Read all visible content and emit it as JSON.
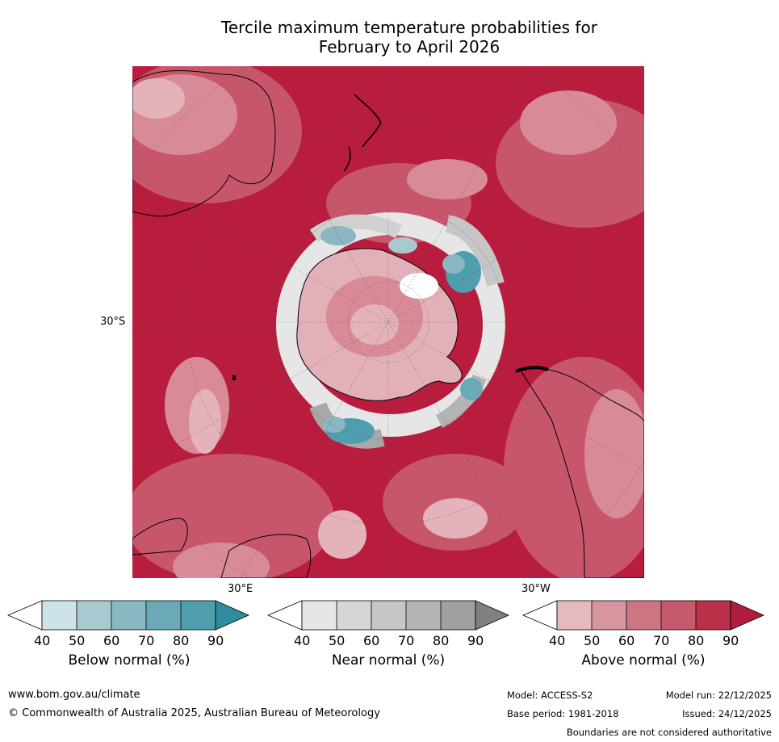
{
  "title_line1": "Tercile maximum temperature probabilities for",
  "title_line2": "February to April 2026",
  "map": {
    "labels": {
      "lat": "30°S",
      "lon_east": "30°E",
      "lon_west": "30°W"
    }
  },
  "colorbars": [
    {
      "label": "Below normal (%)",
      "ticks": [
        "40",
        "50",
        "60",
        "70",
        "80",
        "90"
      ],
      "colors": [
        "#ffffff",
        "#cde3e8",
        "#a8c9d0",
        "#8ab7c2",
        "#6aa9b6",
        "#4e9eae",
        "#2f8d9e"
      ]
    },
    {
      "label": "Near normal (%)",
      "ticks": [
        "40",
        "50",
        "60",
        "70",
        "80",
        "90"
      ],
      "colors": [
        "#ffffff",
        "#e6e6e6",
        "#d6d6d6",
        "#c6c6c6",
        "#b4b4b4",
        "#a0a0a0",
        "#808080"
      ]
    },
    {
      "label": "Above normal (%)",
      "ticks": [
        "40",
        "50",
        "60",
        "70",
        "80",
        "90"
      ],
      "colors": [
        "#ffffff",
        "#e6b9bf",
        "#d8949f",
        "#cc7682",
        "#c45a6c",
        "#ba3049",
        "#b01c3c"
      ]
    }
  ],
  "footer": {
    "website": "www.bom.gov.au/climate",
    "copyright": "© Commonwealth of Australia 2025, Australian Bureau of Meteorology",
    "model": "Model: ACCESS-S2",
    "model_run": "Model run: 22/12/2025",
    "base_period": "Base period: 1981-2018",
    "issued": "Issued: 24/12/2025",
    "disclaimer": "Boundaries are not considered authoritative"
  }
}
